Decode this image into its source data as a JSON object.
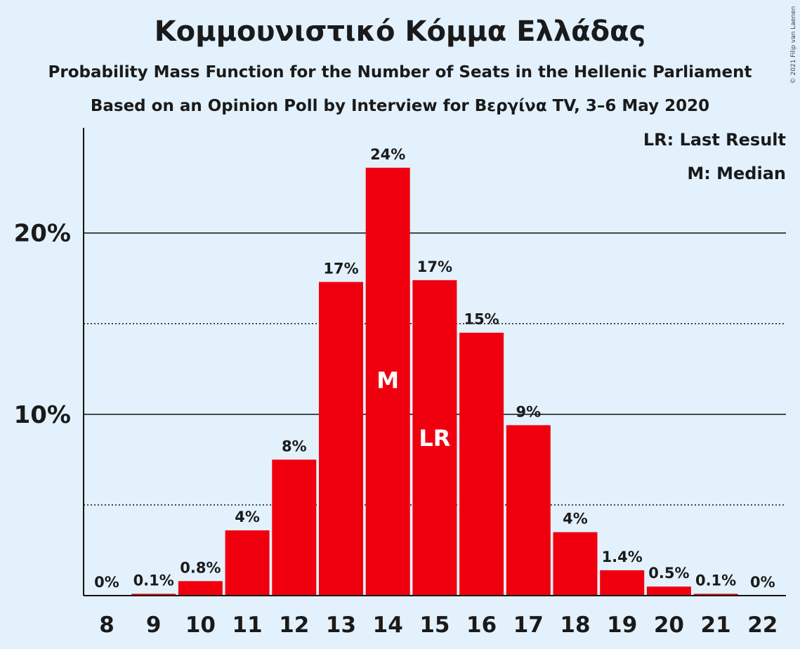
{
  "chart_data": {
    "type": "bar",
    "title": "Κομμουνιστικό Κόμμα Ελλάδας",
    "subtitle": "Probability Mass Function for the Number of Seats in the Hellenic Parliament",
    "subtitle2": "Based on an Opinion Poll by Interview for Βεργίνα TV, 3–6 May 2020",
    "categories": [
      "8",
      "9",
      "10",
      "11",
      "12",
      "13",
      "14",
      "15",
      "16",
      "17",
      "18",
      "19",
      "20",
      "21",
      "22"
    ],
    "values": [
      0,
      0.1,
      0.8,
      3.6,
      7.5,
      17.3,
      23.6,
      17.4,
      14.5,
      9.4,
      3.5,
      1.4,
      0.5,
      0.1,
      0
    ],
    "labels": [
      "0%",
      "0.1%",
      "0.8%",
      "4%",
      "8%",
      "17%",
      "24%",
      "17%",
      "15%",
      "9%",
      "4%",
      "1.4%",
      "0.5%",
      "0.1%",
      "0%"
    ],
    "bar_color": "#f0000f",
    "ylim": [
      0,
      25.8
    ],
    "yticks": [
      {
        "value": 10,
        "label": "10%"
      },
      {
        "value": 20,
        "label": "20%"
      }
    ],
    "dotted_gridlines": [
      5,
      15
    ],
    "markers": [
      {
        "category": "14",
        "text": "M",
        "value": 11.8
      },
      {
        "category": "15",
        "text": "LR",
        "value": 8.6
      }
    ],
    "legend": [
      "LR: Last Result",
      "M: Median"
    ],
    "legend_position": "top-right",
    "copyright": "© 2021 Filip van Laenen"
  }
}
